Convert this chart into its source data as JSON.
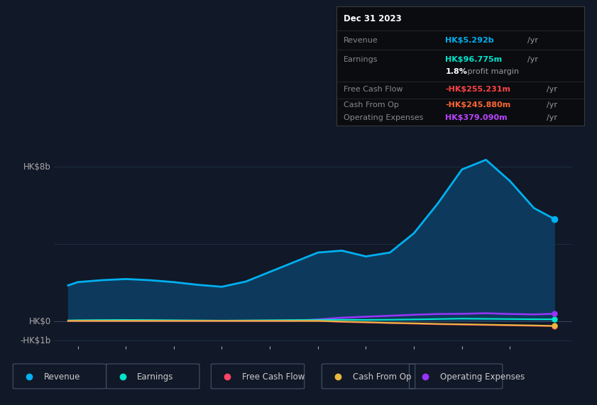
{
  "bg_color": "#111827",
  "plot_bg_color": "#111827",
  "grid_color": "#1e3347",
  "years": [
    2013.8,
    2014,
    2014.5,
    2015,
    2015.5,
    2016,
    2016.5,
    2017,
    2017.5,
    2018,
    2018.5,
    2019,
    2019.5,
    2020,
    2020.5,
    2021,
    2021.5,
    2022,
    2022.5,
    2023,
    2023.5,
    2023.92
  ],
  "revenue": [
    1.85,
    2.02,
    2.12,
    2.18,
    2.12,
    2.02,
    1.88,
    1.78,
    2.05,
    2.55,
    3.05,
    3.55,
    3.65,
    3.35,
    3.55,
    4.55,
    6.1,
    7.85,
    8.35,
    7.25,
    5.85,
    5.292
  ],
  "earnings": [
    0.04,
    0.05,
    0.06,
    0.065,
    0.06,
    0.05,
    0.04,
    0.03,
    0.04,
    0.05,
    0.06,
    0.07,
    0.075,
    0.065,
    0.075,
    0.09,
    0.11,
    0.13,
    0.12,
    0.11,
    0.1,
    0.097
  ],
  "free_cash_flow": [
    0.01,
    0.01,
    0.01,
    0.01,
    0.01,
    0.01,
    0.01,
    0.01,
    0.01,
    0.01,
    0.01,
    0.01,
    -0.04,
    -0.07,
    -0.1,
    -0.13,
    -0.16,
    -0.18,
    -0.2,
    -0.22,
    -0.24,
    -0.255
  ],
  "cash_from_op": [
    0.015,
    0.015,
    0.015,
    0.015,
    0.015,
    0.015,
    0.015,
    0.015,
    0.015,
    0.015,
    0.015,
    0.015,
    -0.02,
    -0.05,
    -0.09,
    -0.11,
    -0.14,
    -0.16,
    -0.18,
    -0.2,
    -0.22,
    -0.246
  ],
  "operating_expenses": [
    0.02,
    0.02,
    0.02,
    0.02,
    0.02,
    0.02,
    0.02,
    0.02,
    0.02,
    0.02,
    0.02,
    0.09,
    0.18,
    0.23,
    0.28,
    0.33,
    0.37,
    0.38,
    0.41,
    0.37,
    0.35,
    0.379
  ],
  "revenue_color": "#00b0f0",
  "revenue_fill_color": "#0d3a5c",
  "earnings_color": "#00e5cc",
  "free_cash_flow_color": "#ff4466",
  "cash_from_op_color": "#e8b840",
  "operating_expenses_color": "#9933ff",
  "ylim_min": -1.3,
  "ylim_max": 9.8,
  "xticks": [
    2014,
    2015,
    2016,
    2017,
    2018,
    2019,
    2020,
    2021,
    2022,
    2023
  ],
  "legend_items": [
    "Revenue",
    "Earnings",
    "Free Cash Flow",
    "Cash From Op",
    "Operating Expenses"
  ],
  "legend_colors": [
    "#00b0f0",
    "#00e5cc",
    "#ff4466",
    "#e8b840",
    "#9933ff"
  ],
  "tooltip_title": "Dec 31 2023",
  "tt_revenue_label": "Revenue",
  "tt_revenue_val": "HK$5.292b",
  "tt_revenue_color": "#00b0f0",
  "tt_earnings_label": "Earnings",
  "tt_earnings_val": "HK$96.775m",
  "tt_earnings_color": "#00e5cc",
  "tt_margin": "1.8%",
  "tt_margin_text": " profit margin",
  "tt_fcf_label": "Free Cash Flow",
  "tt_fcf_val": "-HK$255.231m",
  "tt_fcf_color": "#ff4444",
  "tt_cfo_label": "Cash From Op",
  "tt_cfo_val": "-HK$245.880m",
  "tt_cfo_color": "#ff6633",
  "tt_opex_label": "Operating Expenses",
  "tt_opex_val": "HK$379.090m",
  "tt_opex_color": "#bb44ff"
}
